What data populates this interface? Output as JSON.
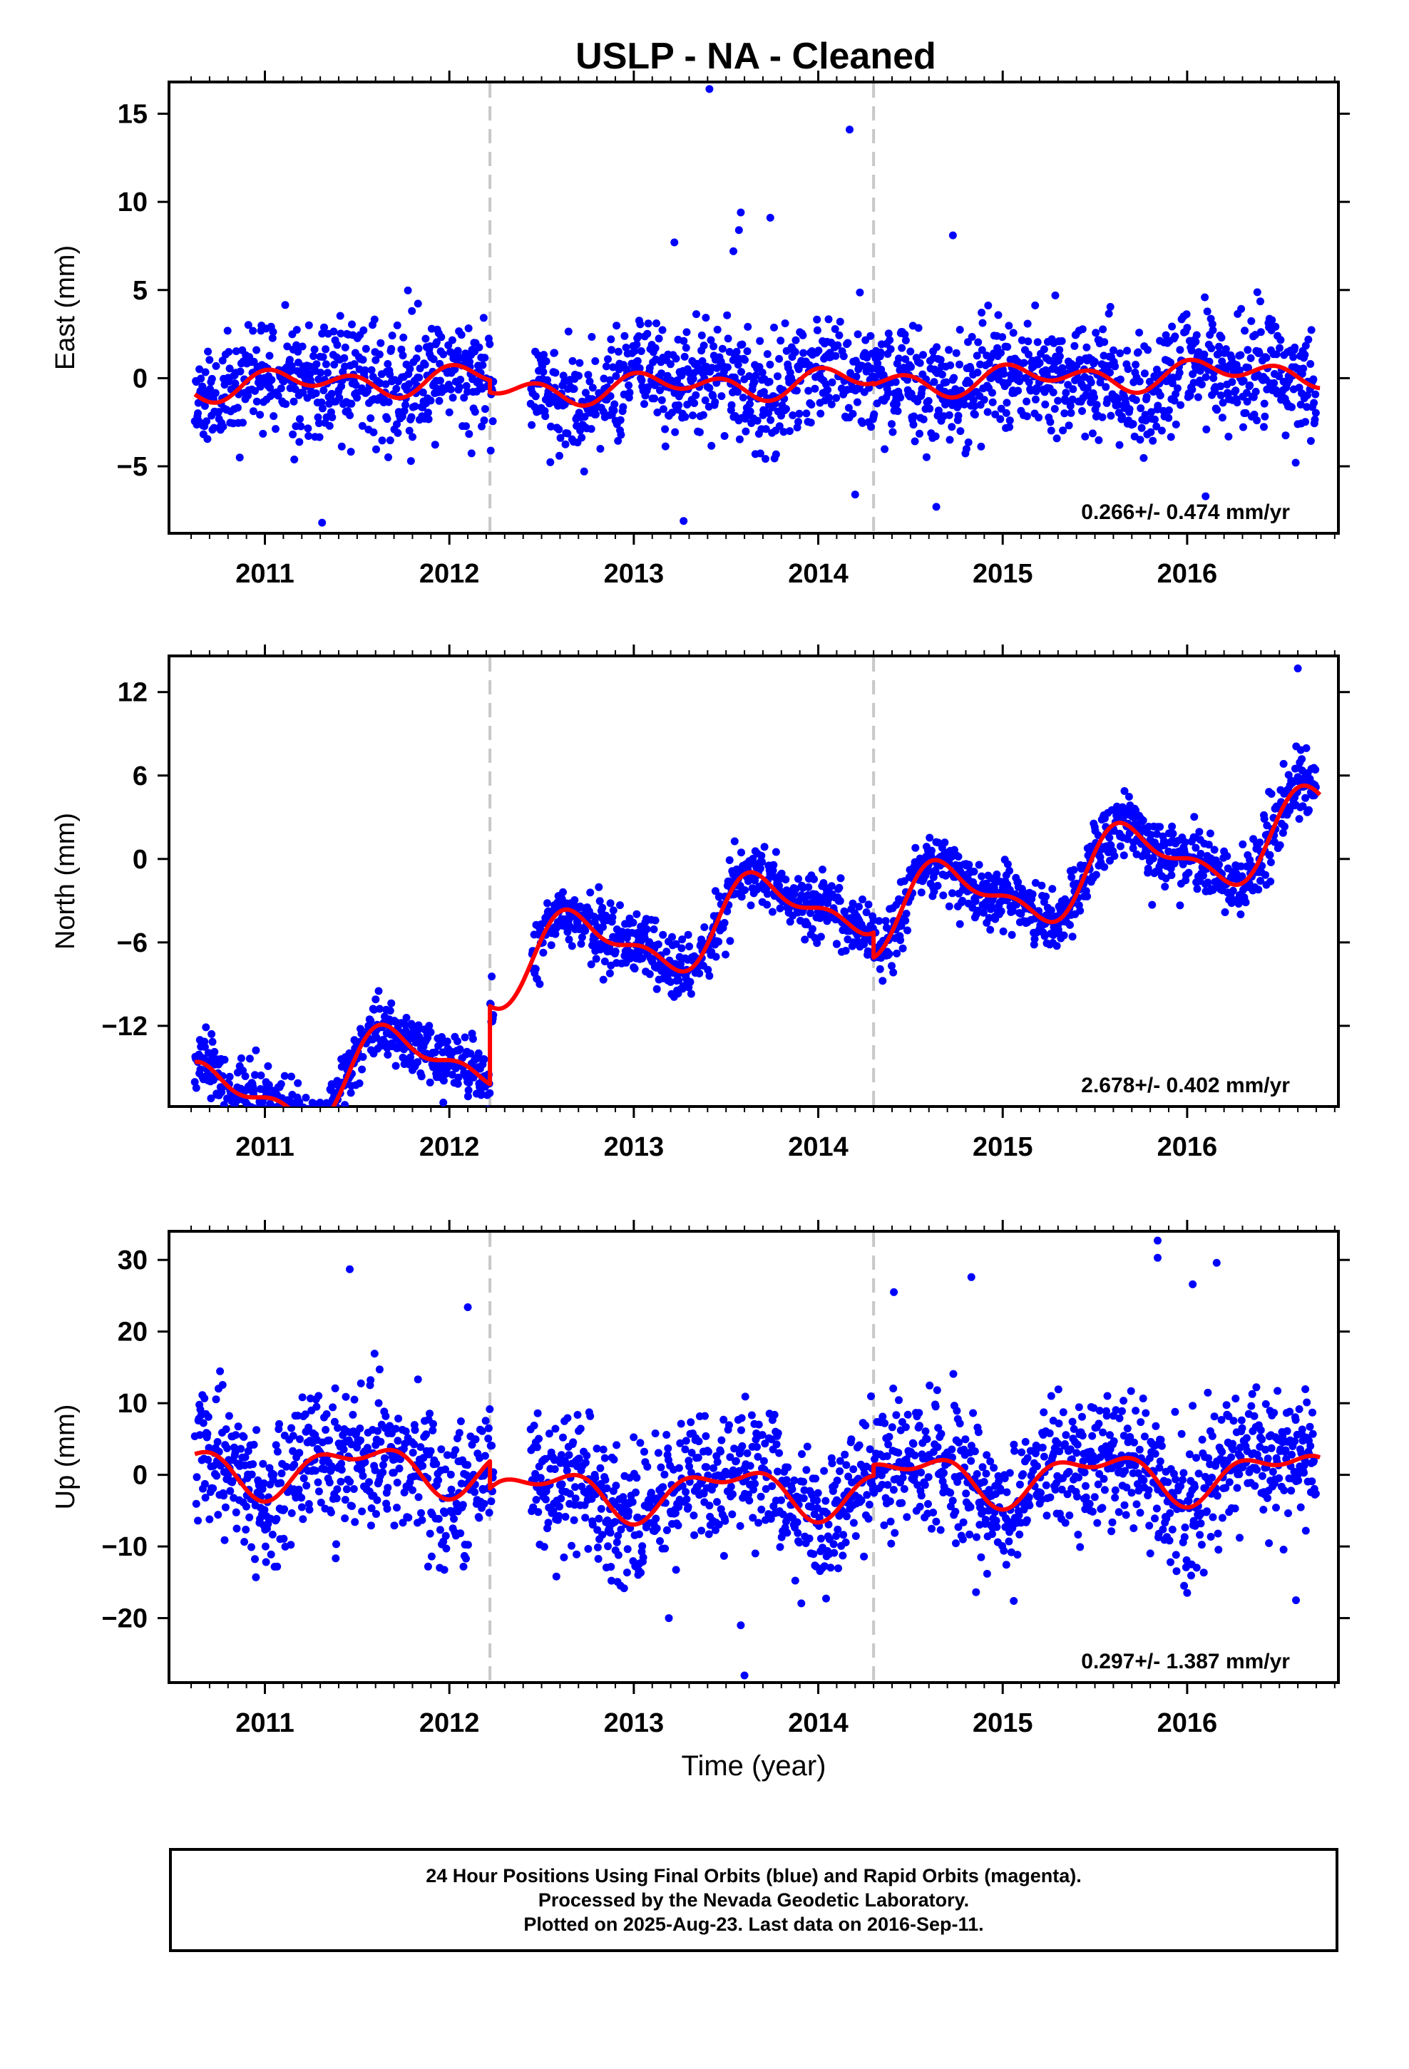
{
  "title": "USLP  - NA - Cleaned",
  "colors": {
    "points": "#0000ff",
    "fit": "#ff0000",
    "breaks": "#c8c8c8"
  },
  "footer": {
    "line1": "24 Hour Positions Using Final Orbits (blue) and Rapid Orbits (magenta).",
    "line2": "Processed by the Nevada Geodetic Laboratory.",
    "line3": "Plotted on 2025-Aug-23. Last data on 2016-Sep-11."
  },
  "chart_data": [
    {
      "type": "scatter",
      "component": "east",
      "ylabel": "East (mm)",
      "xlabel": "",
      "xlim": [
        2010.48,
        2016.82
      ],
      "ylim": [
        -8.8,
        16.8
      ],
      "xticks": [
        2011,
        2012,
        2013,
        2014,
        2015,
        2016
      ],
      "yticks": [
        -5,
        0,
        5,
        10,
        15
      ],
      "ytick_labels": [
        "−5",
        "0",
        "5",
        "10",
        "15"
      ],
      "breaks": [
        2012.22,
        2014.3
      ],
      "rate_label": "0.266+/- 0.474 mm/yr",
      "outliers": [
        [
          2013.41,
          16.4
        ],
        [
          2014.17,
          14.1
        ],
        [
          2013.58,
          9.4
        ],
        [
          2013.74,
          9.1
        ],
        [
          2013.57,
          8.4
        ],
        [
          2014.73,
          8.1
        ],
        [
          2013.54,
          7.2
        ],
        [
          2013.22,
          7.7
        ],
        [
          2011.31,
          -8.2
        ],
        [
          2013.27,
          -8.1
        ],
        [
          2014.2,
          -6.6
        ],
        [
          2016.1,
          -6.7
        ],
        [
          2014.64,
          -7.3
        ]
      ],
      "fit_segments": [
        {
          "range": [
            2010.62,
            2012.22
          ],
          "offset": 0.32,
          "rate": 0.266,
          "amp": [
            0.4,
            0.25,
            -0.05,
            0.55
          ]
        },
        {
          "range": [
            2012.22,
            2014.3
          ],
          "offset": -0.38,
          "rate": 0.266,
          "amp": [
            0.4,
            0.25,
            -0.05,
            0.55
          ]
        },
        {
          "range": [
            2014.3,
            2016.72
          ],
          "offset": -0.45,
          "rate": 0.266,
          "amp": [
            0.4,
            0.25,
            -0.05,
            0.55
          ]
        }
      ],
      "scatter_sd": 1.6,
      "seed": 11
    },
    {
      "type": "scatter",
      "component": "north",
      "ylabel": "North (mm)",
      "xlabel": "",
      "xlim": [
        2010.48,
        2016.82
      ],
      "ylim": [
        -17.8,
        14.6
      ],
      "xticks": [
        2011,
        2012,
        2013,
        2014,
        2015,
        2016
      ],
      "yticks": [
        -12,
        -6,
        0,
        6,
        12
      ],
      "ytick_labels": [
        "−12",
        "−6",
        "0",
        "6",
        "12"
      ],
      "breaks": [
        2012.22,
        2014.3
      ],
      "rate_label": "2.678+/- 0.402 mm/yr",
      "outliers": [
        [
          2010.86,
          -17.0
        ],
        [
          2016.6,
          13.7
        ],
        [
          2015.81,
          -3.3
        ],
        [
          2014.1,
          -6.1
        ]
      ],
      "fit_segments": [
        {
          "range": [
            2010.62,
            2012.22
          ],
          "offset": -10.1,
          "rate": 2.678,
          "amp": [
            -2.35,
            -0.9,
            0.9,
            0.55
          ]
        },
        {
          "range": [
            2012.22,
            2014.3
          ],
          "offset": -4.5,
          "rate": 2.678,
          "amp": [
            -2.35,
            -0.9,
            0.9,
            0.55
          ]
        },
        {
          "range": [
            2014.3,
            2016.72
          ],
          "offset": -6.3,
          "rate": 2.678,
          "amp": [
            -2.35,
            -0.9,
            0.9,
            0.55
          ]
        }
      ],
      "scatter_sd": 1.1,
      "seed": 23
    },
    {
      "type": "scatter",
      "component": "up",
      "ylabel": "Up (mm)",
      "xlabel": "Time (year)",
      "xlim": [
        2010.48,
        2016.82
      ],
      "ylim": [
        -29,
        34
      ],
      "xticks": [
        2011,
        2012,
        2013,
        2014,
        2015,
        2016
      ],
      "yticks": [
        -20,
        -10,
        0,
        10,
        20,
        30
      ],
      "ytick_labels": [
        "−20",
        "−10",
        "0",
        "10",
        "20",
        "30"
      ],
      "breaks": [
        2012.22,
        2014.3
      ],
      "rate_label": "0.297+/- 1.387 mm/yr",
      "outliers": [
        [
          2011.46,
          28.7
        ],
        [
          2015.84,
          32.7
        ],
        [
          2015.84,
          30.3
        ],
        [
          2016.16,
          29.6
        ],
        [
          2016.03,
          26.6
        ],
        [
          2014.83,
          27.6
        ],
        [
          2014.41,
          25.5
        ],
        [
          2013.6,
          -28.0
        ],
        [
          2013.58,
          -21.0
        ],
        [
          2013.19,
          -20.0
        ],
        [
          2015.06,
          -17.6
        ],
        [
          2016.59,
          -17.5
        ],
        [
          2012.1,
          23.4
        ]
      ],
      "fit_segments": [
        {
          "range": [
            2010.62,
            2012.22
          ],
          "offset": 1.5,
          "rate": 0.297,
          "amp": [
            -0.2,
            -2.9,
            0.1,
            -1.6
          ]
        },
        {
          "range": [
            2012.22,
            2014.3
          ],
          "offset": -2.3,
          "rate": 0.297,
          "amp": [
            -0.2,
            -2.9,
            0.1,
            -1.6
          ]
        },
        {
          "range": [
            2014.3,
            2016.72
          ],
          "offset": -0.8,
          "rate": 0.297,
          "amp": [
            -0.2,
            -2.9,
            0.1,
            -1.6
          ]
        }
      ],
      "scatter_sd": 4.6,
      "seed": 37
    }
  ]
}
